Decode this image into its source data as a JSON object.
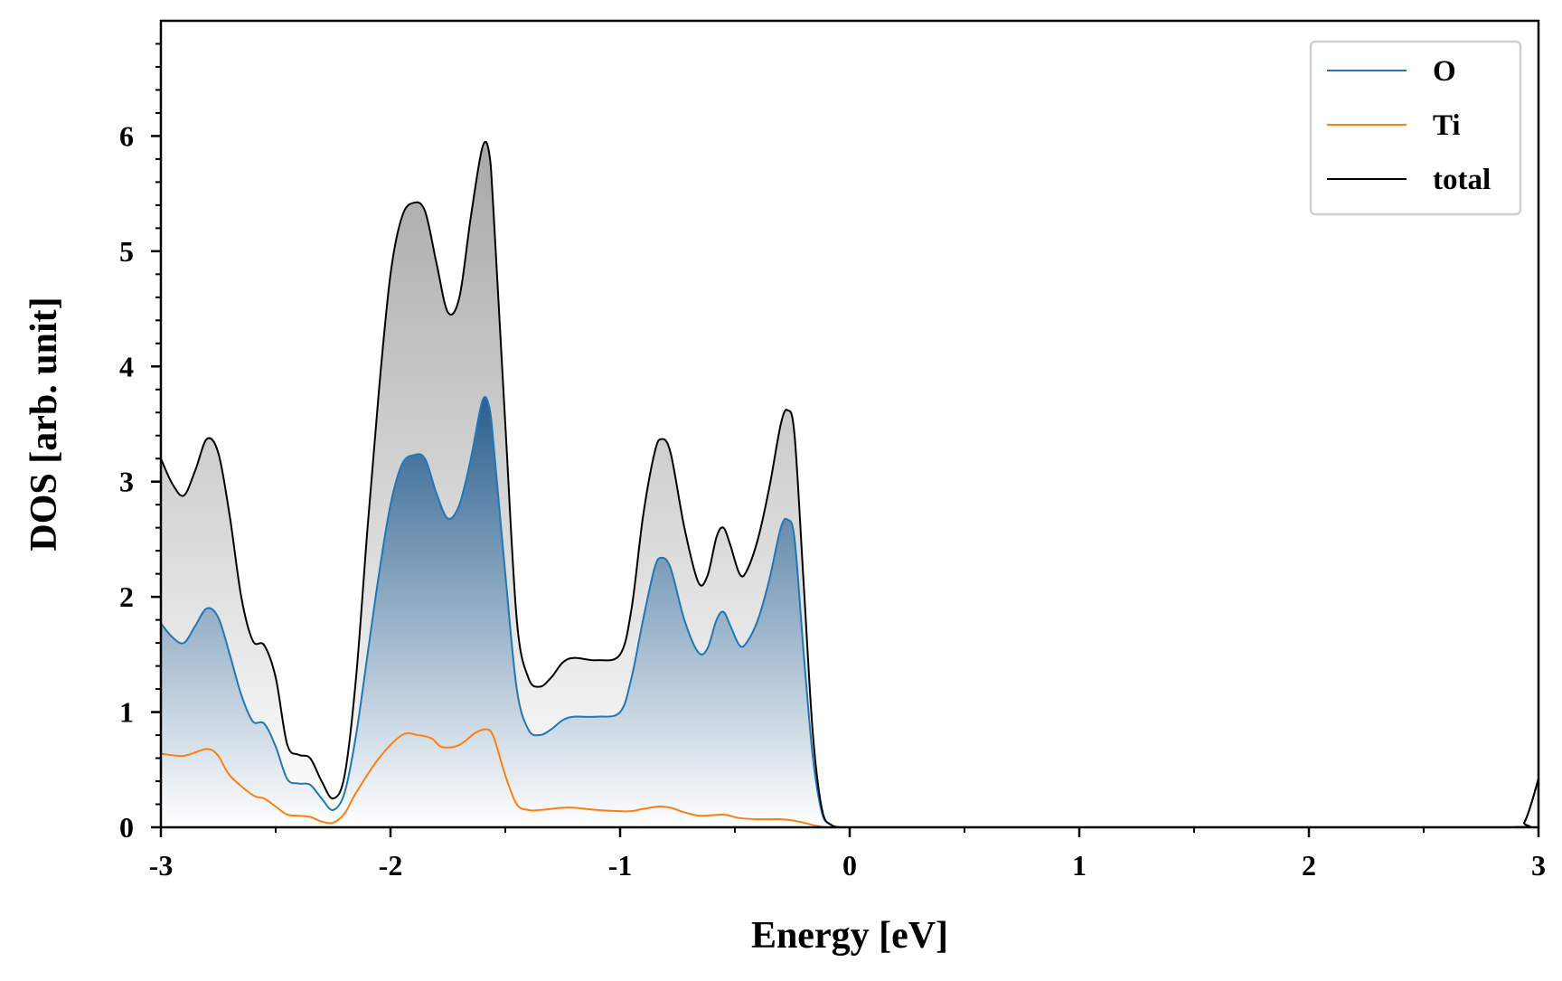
{
  "chart_data": {
    "type": "area",
    "title": "",
    "xlabel": "Energy [eV]",
    "ylabel": "DOS [arb. unit]",
    "xlim": [
      -3,
      3
    ],
    "ylim": [
      0,
      7
    ],
    "x_ticks": [
      -3,
      -2,
      -1,
      0,
      1,
      2,
      3
    ],
    "x_tick_labels": [
      "-3",
      "-2",
      "-1",
      "0",
      "1",
      "2",
      "3"
    ],
    "y_ticks": [
      0,
      1,
      2,
      3,
      4,
      5,
      6
    ],
    "y_tick_labels": [
      "0",
      "1",
      "2",
      "3",
      "4",
      "5",
      "6"
    ],
    "legend_position": "top-right",
    "grid": false,
    "series": [
      {
        "name": "O",
        "color": "#1f77b4",
        "fill": "gradient",
        "points": [
          [
            -3.0,
            1.77
          ],
          [
            -2.95,
            1.65
          ],
          [
            -2.9,
            1.6
          ],
          [
            -2.85,
            1.75
          ],
          [
            -2.8,
            1.9
          ],
          [
            -2.75,
            1.82
          ],
          [
            -2.7,
            1.5
          ],
          [
            -2.65,
            1.15
          ],
          [
            -2.6,
            0.92
          ],
          [
            -2.55,
            0.9
          ],
          [
            -2.5,
            0.7
          ],
          [
            -2.45,
            0.42
          ],
          [
            -2.4,
            0.38
          ],
          [
            -2.35,
            0.37
          ],
          [
            -2.3,
            0.25
          ],
          [
            -2.25,
            0.15
          ],
          [
            -2.2,
            0.3
          ],
          [
            -2.15,
            0.8
          ],
          [
            -2.1,
            1.5
          ],
          [
            -2.05,
            2.2
          ],
          [
            -2.0,
            2.8
          ],
          [
            -1.95,
            3.15
          ],
          [
            -1.9,
            3.23
          ],
          [
            -1.85,
            3.2
          ],
          [
            -1.8,
            2.9
          ],
          [
            -1.75,
            2.68
          ],
          [
            -1.7,
            2.8
          ],
          [
            -1.65,
            3.2
          ],
          [
            -1.6,
            3.7
          ],
          [
            -1.57,
            3.65
          ],
          [
            -1.55,
            3.3
          ],
          [
            -1.5,
            2.2
          ],
          [
            -1.45,
            1.2
          ],
          [
            -1.4,
            0.85
          ],
          [
            -1.35,
            0.8
          ],
          [
            -1.3,
            0.85
          ],
          [
            -1.25,
            0.93
          ],
          [
            -1.2,
            0.96
          ],
          [
            -1.1,
            0.96
          ],
          [
            -1.0,
            1.0
          ],
          [
            -0.95,
            1.3
          ],
          [
            -0.9,
            1.8
          ],
          [
            -0.85,
            2.25
          ],
          [
            -0.82,
            2.34
          ],
          [
            -0.78,
            2.25
          ],
          [
            -0.72,
            1.8
          ],
          [
            -0.66,
            1.52
          ],
          [
            -0.62,
            1.55
          ],
          [
            -0.58,
            1.8
          ],
          [
            -0.55,
            1.87
          ],
          [
            -0.52,
            1.75
          ],
          [
            -0.48,
            1.58
          ],
          [
            -0.45,
            1.6
          ],
          [
            -0.4,
            1.8
          ],
          [
            -0.35,
            2.15
          ],
          [
            -0.3,
            2.6
          ],
          [
            -0.27,
            2.67
          ],
          [
            -0.24,
            2.5
          ],
          [
            -0.2,
            1.5
          ],
          [
            -0.16,
            0.6
          ],
          [
            -0.12,
            0.12
          ],
          [
            -0.08,
            0.02
          ],
          [
            -0.04,
            0.0
          ],
          [
            0.0,
            0.0
          ],
          [
            1.0,
            0.0
          ],
          [
            2.0,
            0.0
          ],
          [
            2.88,
            0.0
          ],
          [
            2.94,
            0.05
          ],
          [
            3.0,
            0.42
          ]
        ]
      },
      {
        "name": "Ti",
        "color": "#ff7f0e",
        "fill": "none",
        "points": [
          [
            -3.0,
            0.64
          ],
          [
            -2.9,
            0.62
          ],
          [
            -2.8,
            0.68
          ],
          [
            -2.75,
            0.62
          ],
          [
            -2.7,
            0.45
          ],
          [
            -2.6,
            0.28
          ],
          [
            -2.55,
            0.25
          ],
          [
            -2.5,
            0.18
          ],
          [
            -2.45,
            0.11
          ],
          [
            -2.4,
            0.1
          ],
          [
            -2.35,
            0.09
          ],
          [
            -2.3,
            0.05
          ],
          [
            -2.25,
            0.04
          ],
          [
            -2.2,
            0.12
          ],
          [
            -2.15,
            0.3
          ],
          [
            -2.05,
            0.6
          ],
          [
            -1.95,
            0.8
          ],
          [
            -1.88,
            0.8
          ],
          [
            -1.82,
            0.77
          ],
          [
            -1.78,
            0.7
          ],
          [
            -1.72,
            0.7
          ],
          [
            -1.68,
            0.74
          ],
          [
            -1.63,
            0.82
          ],
          [
            -1.58,
            0.85
          ],
          [
            -1.55,
            0.78
          ],
          [
            -1.5,
            0.45
          ],
          [
            -1.45,
            0.2
          ],
          [
            -1.4,
            0.15
          ],
          [
            -1.35,
            0.15
          ],
          [
            -1.25,
            0.17
          ],
          [
            -1.2,
            0.17
          ],
          [
            -1.1,
            0.15
          ],
          [
            -1.0,
            0.14
          ],
          [
            -0.95,
            0.14
          ],
          [
            -0.9,
            0.16
          ],
          [
            -0.83,
            0.18
          ],
          [
            -0.78,
            0.17
          ],
          [
            -0.72,
            0.13
          ],
          [
            -0.65,
            0.1
          ],
          [
            -0.55,
            0.11
          ],
          [
            -0.48,
            0.08
          ],
          [
            -0.4,
            0.07
          ],
          [
            -0.3,
            0.07
          ],
          [
            -0.25,
            0.06
          ],
          [
            -0.2,
            0.04
          ],
          [
            -0.15,
            0.015
          ],
          [
            -0.1,
            0.0
          ],
          [
            0.0,
            0.0
          ],
          [
            1.0,
            0.0
          ],
          [
            2.0,
            0.0
          ],
          [
            2.88,
            0.0
          ],
          [
            2.94,
            0.05
          ],
          [
            3.0,
            0.42
          ]
        ]
      },
      {
        "name": "total",
        "color": "#000000",
        "fill": "gradient",
        "points": [
          [
            -3.0,
            3.2
          ],
          [
            -2.95,
            2.98
          ],
          [
            -2.9,
            2.88
          ],
          [
            -2.85,
            3.1
          ],
          [
            -2.8,
            3.37
          ],
          [
            -2.75,
            3.25
          ],
          [
            -2.7,
            2.7
          ],
          [
            -2.65,
            2.0
          ],
          [
            -2.6,
            1.62
          ],
          [
            -2.55,
            1.58
          ],
          [
            -2.5,
            1.3
          ],
          [
            -2.45,
            0.72
          ],
          [
            -2.4,
            0.63
          ],
          [
            -2.35,
            0.6
          ],
          [
            -2.3,
            0.4
          ],
          [
            -2.25,
            0.25
          ],
          [
            -2.2,
            0.45
          ],
          [
            -2.15,
            1.3
          ],
          [
            -2.1,
            2.6
          ],
          [
            -2.05,
            3.8
          ],
          [
            -2.0,
            4.8
          ],
          [
            -1.95,
            5.3
          ],
          [
            -1.9,
            5.42
          ],
          [
            -1.85,
            5.35
          ],
          [
            -1.8,
            4.9
          ],
          [
            -1.75,
            4.47
          ],
          [
            -1.7,
            4.6
          ],
          [
            -1.65,
            5.3
          ],
          [
            -1.6,
            5.9
          ],
          [
            -1.57,
            5.85
          ],
          [
            -1.55,
            5.3
          ],
          [
            -1.5,
            3.5
          ],
          [
            -1.45,
            1.8
          ],
          [
            -1.4,
            1.3
          ],
          [
            -1.35,
            1.22
          ],
          [
            -1.3,
            1.3
          ],
          [
            -1.25,
            1.43
          ],
          [
            -1.2,
            1.47
          ],
          [
            -1.1,
            1.45
          ],
          [
            -1.0,
            1.5
          ],
          [
            -0.95,
            1.9
          ],
          [
            -0.9,
            2.7
          ],
          [
            -0.85,
            3.25
          ],
          [
            -0.82,
            3.37
          ],
          [
            -0.78,
            3.25
          ],
          [
            -0.72,
            2.6
          ],
          [
            -0.66,
            2.13
          ],
          [
            -0.62,
            2.18
          ],
          [
            -0.58,
            2.52
          ],
          [
            -0.55,
            2.6
          ],
          [
            -0.52,
            2.45
          ],
          [
            -0.48,
            2.2
          ],
          [
            -0.45,
            2.22
          ],
          [
            -0.4,
            2.5
          ],
          [
            -0.35,
            2.95
          ],
          [
            -0.3,
            3.5
          ],
          [
            -0.27,
            3.62
          ],
          [
            -0.24,
            3.4
          ],
          [
            -0.2,
            2.1
          ],
          [
            -0.16,
            0.8
          ],
          [
            -0.12,
            0.15
          ],
          [
            -0.08,
            0.02
          ],
          [
            -0.04,
            0.0
          ],
          [
            0.0,
            0.0
          ],
          [
            1.0,
            0.0
          ],
          [
            2.0,
            0.0
          ],
          [
            2.88,
            0.0
          ],
          [
            2.94,
            0.05
          ],
          [
            3.0,
            0.42
          ]
        ]
      }
    ]
  }
}
